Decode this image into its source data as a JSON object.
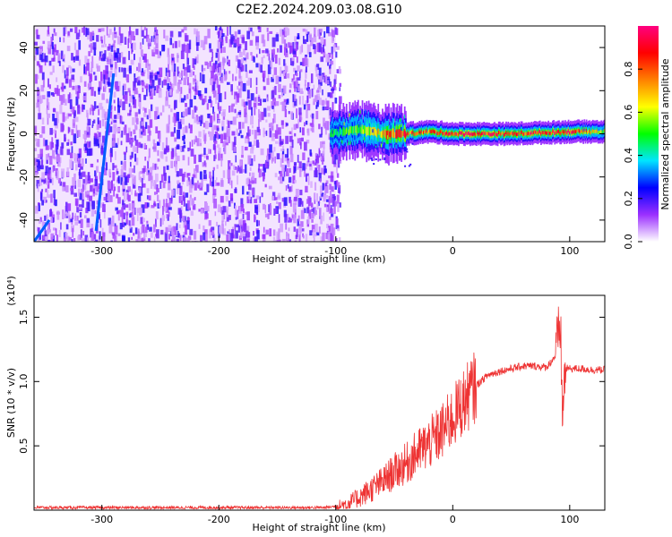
{
  "figure": {
    "title": "C2E2.2024.209.03.08.G10"
  },
  "chart_data": [
    {
      "type": "heatmap",
      "title": "C2E2.2024.209.03.08.G10",
      "xlabel": "Height of straight line (km)",
      "ylabel": "Frequency (Hz)",
      "xlim": [
        -358,
        130
      ],
      "ylim": [
        -50,
        50
      ],
      "xticks": [
        -300,
        -200,
        -100,
        0,
        100
      ],
      "xtick_labels": [
        "-300",
        "-200",
        "-100",
        "0",
        "100"
      ],
      "yticks": [
        -40,
        -20,
        0,
        20,
        40
      ],
      "ytick_labels": [
        "-40",
        "-20",
        "0",
        "20",
        "40"
      ],
      "grid": false,
      "noise_region_x": [
        -358,
        -100
      ],
      "signal_band": {
        "x": [
          -105,
          -80,
          -60,
          -40,
          -20,
          0,
          50,
          100,
          130
        ],
        "center_hz": [
          0,
          2,
          0,
          0,
          1,
          0,
          0,
          1,
          1
        ],
        "peak_amplitude": [
          0.45,
          0.55,
          0.75,
          0.85,
          0.8,
          0.9,
          0.85,
          0.9,
          0.6
        ]
      },
      "tracks": [
        {
          "x": [
            -358,
            -345
          ],
          "y": [
            -50,
            -40
          ]
        },
        {
          "x": [
            -305,
            -290
          ],
          "y": [
            -45,
            28
          ]
        }
      ],
      "colorbar": {
        "label": "Normalized spectral amplitude",
        "range": [
          0,
          1
        ],
        "ticks": [
          0.0,
          0.2,
          0.4,
          0.6,
          0.8
        ],
        "tick_labels": [
          "0.0",
          "0.2",
          "0.4",
          "0.6",
          "0.8"
        ],
        "colors": [
          "#ffffff",
          "#9b30ff",
          "#0000ff",
          "#00e5ff",
          "#00ff00",
          "#ffff00",
          "#ff8000",
          "#ff0000",
          "#ff0080"
        ]
      }
    },
    {
      "type": "line",
      "xlabel": "Height of straight line (km)",
      "ylabel": "SNR (10 * v/v)",
      "y_multiplier_label": "(x10⁴)",
      "xlim": [
        -358,
        130
      ],
      "ylim": [
        0,
        1.67
      ],
      "xticks": [
        -300,
        -200,
        -100,
        0,
        100
      ],
      "xtick_labels": [
        "-300",
        "-200",
        "-100",
        "0",
        "100"
      ],
      "yticks": [
        0.5,
        1.0,
        1.5
      ],
      "ytick_labels": [
        "0.5",
        "1.0",
        "1.5"
      ],
      "grid": false,
      "series": [
        {
          "color": "#ee3333",
          "x": [
            -358,
            -300,
            -250,
            -200,
            -150,
            -110,
            -100,
            -90,
            -80,
            -70,
            -60,
            -50,
            -40,
            -30,
            -20,
            -10,
            0,
            10,
            20,
            30,
            40,
            50,
            60,
            70,
            80,
            88,
            92,
            94,
            96,
            100,
            110,
            120,
            130
          ],
          "y": [
            0.02,
            0.02,
            0.02,
            0.02,
            0.02,
            0.02,
            0.03,
            0.05,
            0.1,
            0.16,
            0.22,
            0.3,
            0.36,
            0.45,
            0.52,
            0.6,
            0.72,
            0.85,
            0.97,
            1.05,
            1.08,
            1.1,
            1.12,
            1.12,
            1.11,
            1.2,
            1.45,
            0.7,
            1.1,
            1.1,
            1.1,
            1.09,
            1.09
          ]
        }
      ]
    }
  ]
}
